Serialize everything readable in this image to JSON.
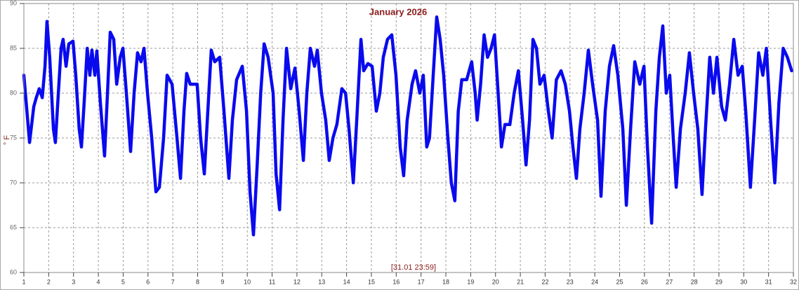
{
  "chart_data": {
    "type": "line",
    "title": "January 2026",
    "y_label": "° F",
    "annotation": "[31.01 23:59]",
    "color": "#0a0aee",
    "grid": true,
    "xlim": [
      1,
      32
    ],
    "xticks": [
      1,
      2,
      3,
      4,
      5,
      6,
      7,
      8,
      9,
      10,
      11,
      12,
      13,
      14,
      15,
      16,
      17,
      18,
      19,
      20,
      21,
      22,
      23,
      24,
      25,
      26,
      27,
      28,
      29,
      30,
      31,
      32
    ],
    "ylim": [
      60,
      90
    ],
    "yticks": [
      60,
      65,
      70,
      75,
      80,
      85,
      90
    ],
    "x": [
      1.0,
      1.23,
      1.4,
      1.5,
      1.62,
      1.74,
      1.85,
      1.93,
      2.04,
      2.19,
      2.27,
      2.39,
      2.5,
      2.58,
      2.7,
      2.81,
      2.98,
      3.09,
      3.23,
      3.32,
      3.43,
      3.55,
      3.66,
      3.74,
      3.86,
      3.94,
      4.08,
      4.25,
      4.37,
      4.48,
      4.62,
      4.74,
      4.88,
      4.99,
      5.13,
      5.3,
      5.44,
      5.58,
      5.72,
      5.84,
      5.98,
      6.15,
      6.32,
      6.46,
      6.63,
      6.77,
      6.97,
      7.17,
      7.31,
      7.45,
      7.56,
      7.7,
      7.84,
      7.98,
      8.12,
      8.27,
      8.41,
      8.55,
      8.69,
      8.89,
      9.06,
      9.26,
      9.4,
      9.57,
      9.8,
      9.97,
      10.11,
      10.25,
      10.4,
      10.54,
      10.68,
      10.84,
      11.04,
      11.16,
      11.3,
      11.44,
      11.58,
      11.75,
      11.92,
      12.09,
      12.26,
      12.4,
      12.54,
      12.71,
      12.82,
      12.99,
      13.16,
      13.3,
      13.45,
      13.61,
      13.81,
      13.96,
      14.1,
      14.27,
      14.41,
      14.58,
      14.69,
      14.86,
      15.03,
      15.2,
      15.34,
      15.48,
      15.65,
      15.82,
      15.99,
      16.16,
      16.3,
      16.44,
      16.64,
      16.78,
      16.95,
      17.09,
      17.23,
      17.34,
      17.49,
      17.63,
      17.77,
      17.91,
      18.08,
      18.22,
      18.36,
      18.5,
      18.64,
      18.84,
      19.04,
      19.18,
      19.26,
      19.4,
      19.54,
      19.68,
      19.82,
      19.96,
      20.13,
      20.24,
      20.38,
      20.58,
      20.75,
      20.92,
      21.09,
      21.23,
      21.37,
      21.51,
      21.65,
      21.79,
      21.96,
      22.13,
      22.28,
      22.45,
      22.64,
      22.81,
      22.98,
      23.12,
      23.26,
      23.4,
      23.57,
      23.74,
      23.91,
      24.11,
      24.25,
      24.42,
      24.59,
      24.76,
      24.93,
      25.13,
      25.27,
      25.44,
      25.61,
      25.81,
      25.98,
      26.12,
      26.29,
      26.46,
      26.6,
      26.74,
      26.88,
      27.02,
      27.16,
      27.28,
      27.45,
      27.64,
      27.81,
      27.98,
      28.15,
      28.32,
      28.46,
      28.63,
      28.78,
      28.92,
      29.11,
      29.26,
      29.43,
      29.6,
      29.77,
      29.94,
      30.08,
      30.27,
      30.44,
      30.6,
      30.77,
      30.91,
      31.08,
      31.25,
      31.42,
      31.59,
      31.76,
      31.93
    ],
    "values": [
      82,
      74.5,
      78.5,
      79.5,
      80.5,
      79.5,
      83,
      88,
      84,
      76,
      74.5,
      80,
      85,
      86,
      83,
      85.5,
      85.8,
      82,
      76,
      74,
      79,
      85,
      82,
      84.8,
      82,
      84.7,
      79,
      73,
      80,
      86.8,
      86,
      81,
      84,
      85,
      80,
      73.5,
      80,
      84.5,
      83.5,
      85,
      80,
      75,
      69,
      69.5,
      75,
      82,
      81,
      75,
      70.5,
      78,
      82.2,
      81,
      81,
      81,
      75,
      71,
      78,
      84.8,
      83.5,
      84,
      78,
      70.5,
      77,
      81.5,
      83,
      78,
      69,
      64.2,
      72,
      80,
      85.5,
      84,
      80,
      71,
      67,
      77,
      85,
      80.5,
      82.8,
      78,
      72.5,
      80,
      85,
      83,
      84.8,
      80,
      77,
      72.5,
      75,
      76.5,
      80.5,
      80,
      76,
      70,
      77,
      86,
      82.5,
      83.3,
      83,
      78,
      80,
      84,
      86,
      86.5,
      82,
      74,
      70.8,
      77,
      81,
      82.5,
      80,
      82,
      74,
      75,
      82,
      88.5,
      86,
      82,
      75,
      70,
      68,
      78,
      81.5,
      81.5,
      83.5,
      80,
      77,
      81,
      86.5,
      84,
      85,
      86.5,
      79,
      74,
      76.5,
      76.5,
      80,
      82.5,
      77,
      72,
      77,
      86,
      85,
      81,
      82,
      78,
      75,
      81.5,
      82.5,
      81,
      78,
      74,
      70.5,
      76,
      80,
      84.8,
      81,
      77,
      68.5,
      78,
      83,
      85.3,
      82,
      76,
      67.5,
      76,
      83.5,
      81,
      83,
      74,
      65.5,
      78,
      84,
      87.5,
      80,
      82,
      75,
      69.5,
      76,
      80,
      84.5,
      80,
      76,
      68.7,
      76,
      84,
      80,
      84,
      78.5,
      77,
      81,
      86,
      82,
      83,
      78,
      69.5,
      77,
      84.5,
      82,
      85,
      77,
      70,
      79,
      85,
      84,
      82.5
    ]
  }
}
